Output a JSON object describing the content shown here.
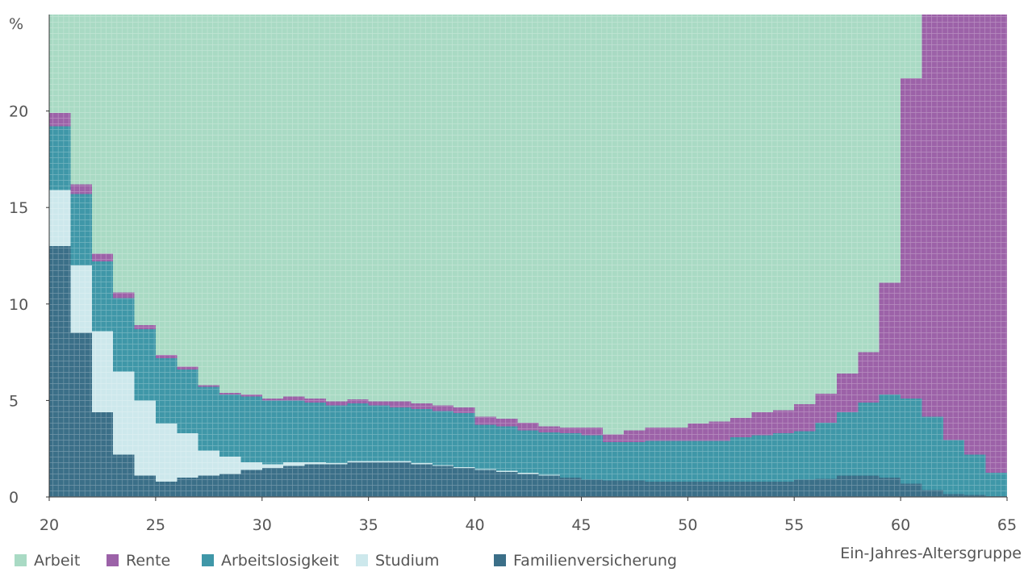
{
  "chart_data": {
    "type": "bar",
    "stacked": true,
    "title": "",
    "xlabel": "Ein-Jahres-Altersgruppe",
    "ylabel": "%",
    "xlim": [
      20,
      65
    ],
    "ylim": [
      0,
      25
    ],
    "x_ticks": [
      "20",
      "25",
      "30",
      "35",
      "40",
      "45",
      "50",
      "55",
      "60",
      "65"
    ],
    "y_ticks": [
      "0",
      "5",
      "10",
      "15",
      "20"
    ],
    "legend_position": "bottom-left",
    "categories": [
      20,
      21,
      22,
      23,
      24,
      25,
      26,
      27,
      28,
      29,
      30,
      31,
      32,
      33,
      34,
      35,
      36,
      37,
      38,
      39,
      40,
      41,
      42,
      43,
      44,
      45,
      46,
      47,
      48,
      49,
      50,
      51,
      52,
      53,
      54,
      55,
      56,
      57,
      58,
      59,
      60,
      61,
      62,
      63,
      64
    ],
    "series": [
      {
        "name": "Familienversicherung",
        "color": "#3b6f88",
        "values": [
          13.0,
          8.5,
          4.4,
          2.2,
          1.1,
          0.8,
          1.0,
          1.1,
          1.2,
          1.4,
          1.5,
          1.6,
          1.7,
          1.7,
          1.8,
          1.8,
          1.8,
          1.7,
          1.6,
          1.5,
          1.4,
          1.3,
          1.2,
          1.1,
          1.0,
          0.9,
          0.85,
          0.85,
          0.8,
          0.8,
          0.8,
          0.8,
          0.8,
          0.8,
          0.8,
          0.9,
          0.95,
          1.1,
          1.1,
          1.0,
          0.7,
          0.35,
          0.15,
          0.1,
          0.05
        ]
      },
      {
        "name": "Studium",
        "color": "#cde8ec",
        "values": [
          2.9,
          3.5,
          4.2,
          4.3,
          3.9,
          3.0,
          2.3,
          1.3,
          0.9,
          0.4,
          0.2,
          0.2,
          0.1,
          0.05,
          0.05,
          0.05,
          0.05,
          0.05,
          0.05,
          0.05,
          0.05,
          0.05,
          0.05,
          0.05,
          0,
          0,
          0,
          0,
          0,
          0,
          0,
          0,
          0,
          0,
          0,
          0,
          0,
          0,
          0,
          0,
          0,
          0,
          0,
          0,
          0
        ]
      },
      {
        "name": "Arbeitslosigkeit",
        "color": "#3f97a8",
        "values": [
          3.3,
          3.7,
          3.6,
          3.8,
          3.7,
          3.4,
          3.3,
          3.3,
          3.2,
          3.4,
          3.3,
          3.2,
          3.1,
          3.0,
          3.0,
          2.9,
          2.8,
          2.8,
          2.8,
          2.8,
          2.3,
          2.3,
          2.2,
          2.2,
          2.3,
          2.3,
          2.0,
          2.0,
          2.1,
          2.1,
          2.1,
          2.1,
          2.3,
          2.4,
          2.5,
          2.5,
          2.9,
          3.3,
          3.8,
          4.3,
          4.4,
          3.8,
          2.8,
          2.1,
          1.2
        ]
      },
      {
        "name": "Rente",
        "color": "#9c62a8",
        "values": [
          0.7,
          0.5,
          0.4,
          0.3,
          0.2,
          0.15,
          0.15,
          0.1,
          0.1,
          0.1,
          0.1,
          0.2,
          0.2,
          0.2,
          0.2,
          0.2,
          0.3,
          0.3,
          0.3,
          0.3,
          0.4,
          0.4,
          0.4,
          0.3,
          0.3,
          0.4,
          0.4,
          0.6,
          0.7,
          0.7,
          0.9,
          1.0,
          1.0,
          1.2,
          1.2,
          1.4,
          1.5,
          2.0,
          2.6,
          5.8,
          16.6,
          20.85,
          22.05,
          22.8,
          23.75
        ]
      },
      {
        "name": "Arbeit",
        "color": "#a9dac4",
        "values": [
          5.1,
          8.8,
          12.4,
          14.4,
          16.1,
          17.65,
          18.25,
          19.2,
          19.6,
          19.7,
          19.9,
          19.8,
          19.9,
          20.05,
          19.95,
          20.05,
          20.05,
          20.15,
          20.25,
          20.35,
          20.85,
          20.95,
          21.15,
          21.35,
          21.4,
          21.4,
          21.75,
          21.55,
          21.4,
          21.4,
          21.2,
          21.1,
          20.9,
          20.6,
          20.5,
          20.2,
          19.65,
          18.6,
          17.5,
          13.9,
          3.3,
          0,
          0,
          0,
          0
        ]
      }
    ],
    "legend": [
      "Arbeit",
      "Rente",
      "Arbeitslosigkeit",
      "Studium",
      "Familienversicherung"
    ]
  }
}
